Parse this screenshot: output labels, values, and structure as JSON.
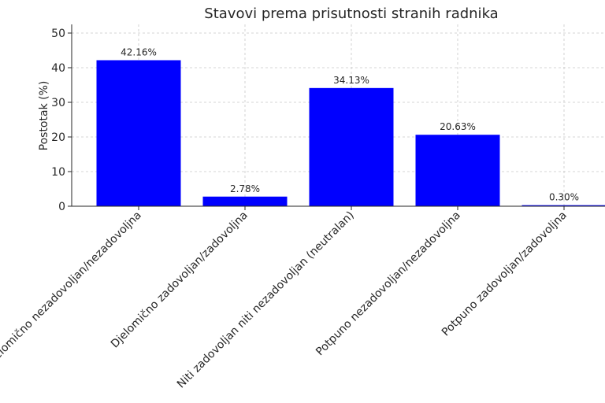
{
  "chart_data": {
    "type": "bar",
    "title": "Stavovi prema prisutnosti stranih radnika",
    "xlabel": "",
    "ylabel": "Postotak (%)",
    "categories": [
      "Djelomično nezadovoljan/nezadovoljna",
      "Djelomično zadovoljan/zadovoljna",
      "Niti zadovoljan niti nezadovoljan (neutralan)",
      "Potpuno nezadovoljan/nezadovoljna",
      "Potpuno zadovoljan/zadovoljna"
    ],
    "values": [
      42.16,
      2.78,
      34.13,
      20.63,
      0.3
    ],
    "data_labels": [
      "42.16%",
      "2.78%",
      "34.13%",
      "20.63%",
      "0.30%"
    ],
    "ylim": [
      0,
      52.5
    ],
    "yticks": [
      0,
      10,
      20,
      30,
      40,
      50
    ],
    "grid": true,
    "bar_color": "#0000ff"
  }
}
